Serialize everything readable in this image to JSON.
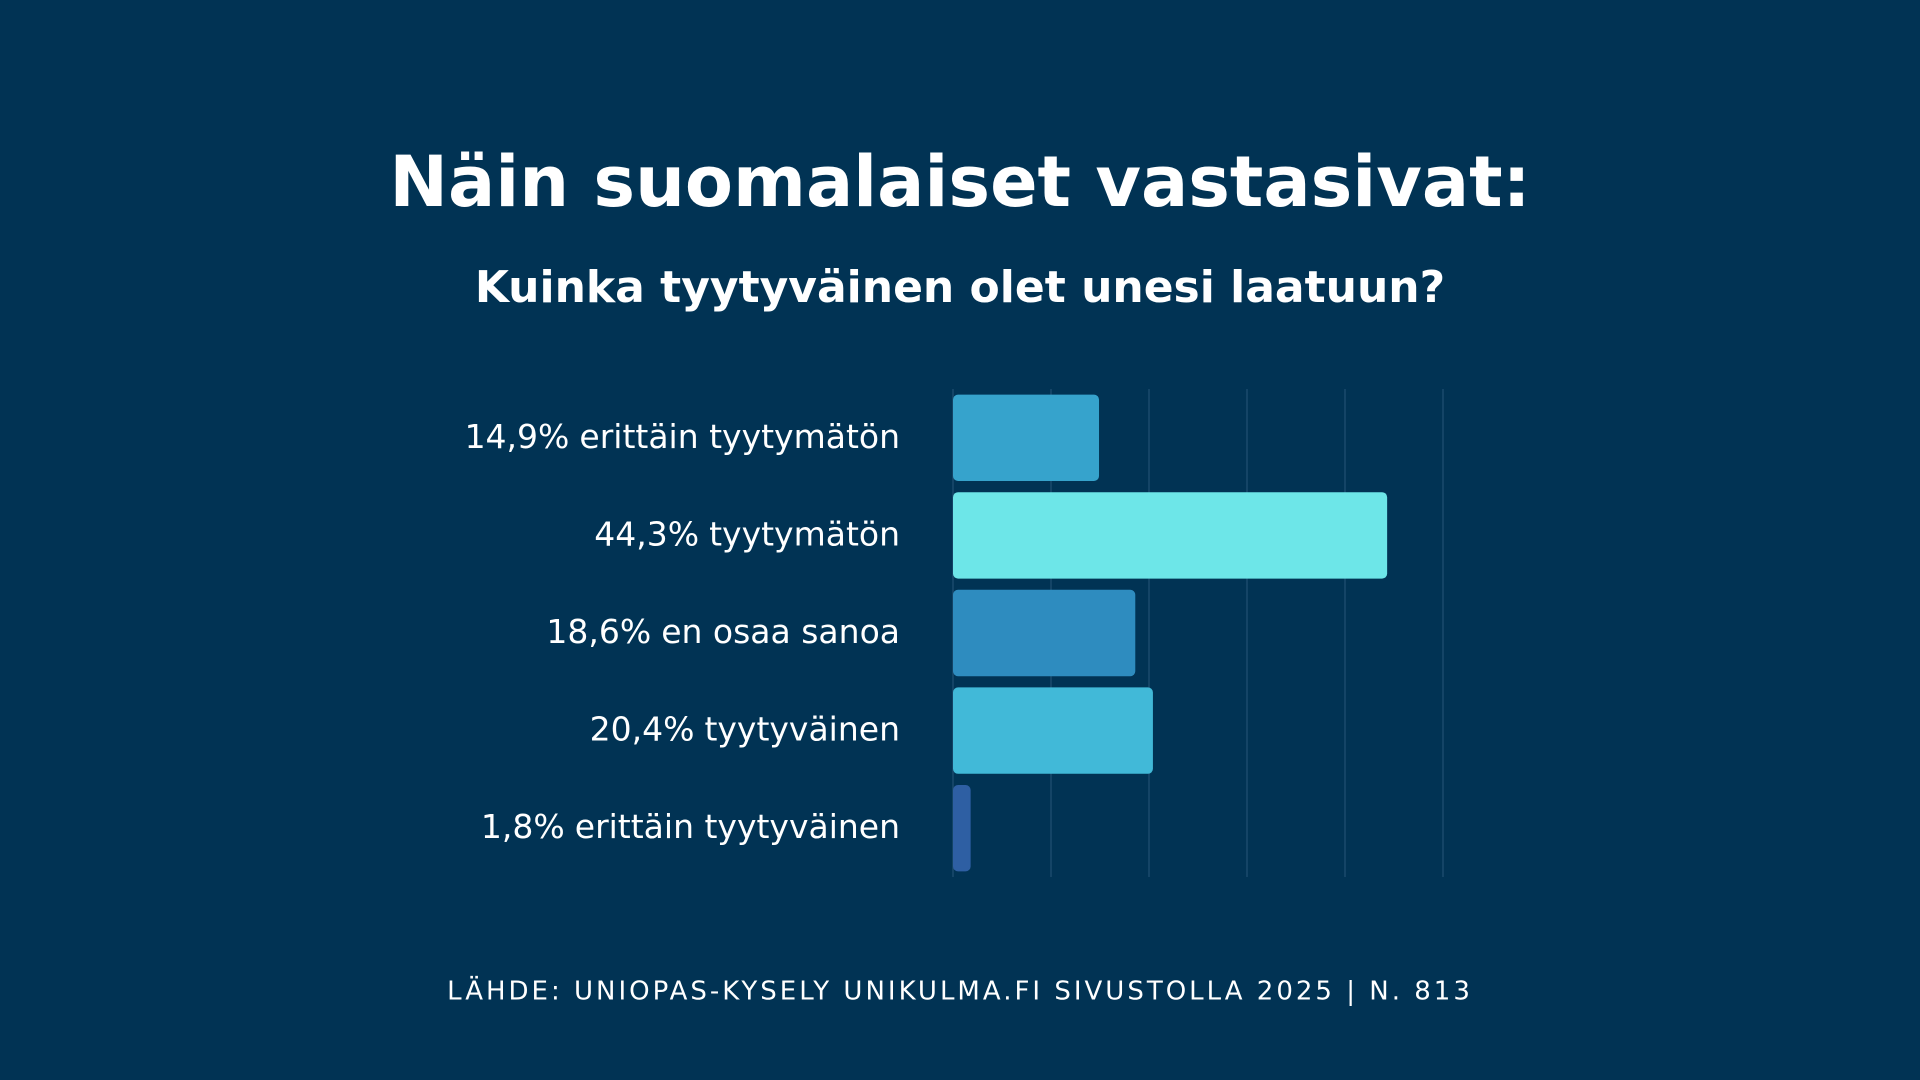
{
  "chart_data": {
    "type": "bar",
    "orientation": "horizontal",
    "title": "Näin suomalaiset vastasivat:",
    "subtitle": "Kuinka tyytyväinen olet unesi laatuun?",
    "categories": [
      "erittäin tyytymätön",
      "tyytymätön",
      "en osaa sanoa",
      "tyytyväinen",
      "erittäin tyytyväinen"
    ],
    "values": [
      14.9,
      44.3,
      18.6,
      20.4,
      1.8
    ],
    "value_labels": [
      "14,9%",
      "44,3%",
      "18,6%",
      "20,4%",
      "1,8%"
    ],
    "colors": [
      "#36a3cc",
      "#6de6e8",
      "#2e8cbf",
      "#41b9d8",
      "#2e5fa3"
    ],
    "xlim": [
      0,
      50
    ],
    "xticks": [
      0,
      10,
      20,
      30,
      40,
      50
    ],
    "grid": true,
    "source": "LÄHDE: UNIOPAS-KYSELY UNIKULMA.FI SIVUSTOLLA 2025 | N. 813"
  }
}
